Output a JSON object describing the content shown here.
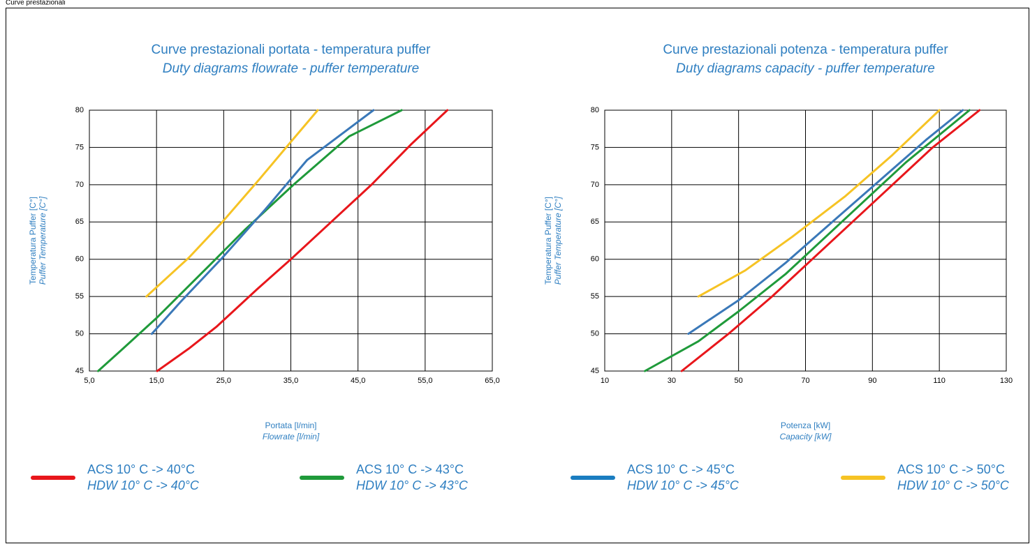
{
  "header": "Curve prestazionali",
  "chart_data": [
    {
      "type": "line",
      "title": "Curve prestazionali portata - temperatura puffer",
      "subtitle": "Duty diagrams flowrate - puffer temperature",
      "xlabel": "Portata [l/min]",
      "xlabel_en": "Flowrate [l/min]",
      "ylabel": "Temperatura  Puffer [C°]",
      "ylabel_en": "Puffer Temperature [C°]",
      "xlim": [
        5,
        65
      ],
      "xticks": [
        {
          "value": 5,
          "label": "5,0"
        },
        {
          "value": 15,
          "label": "15,0"
        },
        {
          "value": 25,
          "label": "25,0"
        },
        {
          "value": 35,
          "label": "35,0"
        },
        {
          "value": 45,
          "label": "45,0"
        },
        {
          "value": 55,
          "label": "55,0"
        },
        {
          "value": 65,
          "label": "65,0"
        }
      ],
      "ylim": [
        45,
        80
      ],
      "yticks": [
        45,
        50,
        55,
        60,
        65,
        70,
        75,
        80
      ],
      "grid": true,
      "series": [
        {
          "color": "#e8161b",
          "x": [
            15.1,
            19.8,
            24,
            30,
            35,
            41,
            47,
            53,
            58.3
          ],
          "values": [
            45,
            48,
            51,
            56,
            60,
            65,
            70,
            75.5,
            80
          ]
        },
        {
          "color": "#1f9a3a",
          "x": [
            6.3,
            10,
            15.1,
            22.9,
            28.1,
            35.4,
            43.7,
            51.5
          ],
          "values": [
            45,
            48,
            52.2,
            59.2,
            63.9,
            70,
            76.5,
            80
          ]
        },
        {
          "color": "#3a78b8",
          "x": [
            14.3,
            18.7,
            24.8,
            31.2,
            37.4,
            47.3
          ],
          "values": [
            50,
            54.4,
            60.2,
            66.7,
            73.3,
            80
          ]
        },
        {
          "color": "#f6c324",
          "x": [
            13.5,
            19.8,
            24.8,
            30.2,
            34.3,
            39
          ],
          "values": [
            55,
            60.2,
            65,
            70.6,
            75,
            80
          ]
        }
      ]
    },
    {
      "type": "line",
      "title": "Curve prestazionali potenza - temperatura puffer",
      "subtitle": "Duty diagrams capacity - puffer temperature",
      "xlabel": "Potenza [kW]",
      "xlabel_en": "Capacity [kW]",
      "ylabel": "Temperatura  Puffer [C°]",
      "ylabel_en": "Puffer Temperature [C°]",
      "xlim": [
        10,
        130
      ],
      "xticks": [
        10,
        30,
        50,
        70,
        90,
        110,
        130
      ],
      "ylim": [
        45,
        80
      ],
      "yticks": [
        45,
        50,
        55,
        60,
        65,
        70,
        75,
        80
      ],
      "grid": true,
      "series": [
        {
          "color": "#e8161b",
          "x": [
            33,
            47,
            60,
            72,
            84,
            96,
            108,
            122
          ],
          "values": [
            45,
            50,
            55,
            60,
            65,
            70,
            75,
            80
          ]
        },
        {
          "color": "#1f9a3a",
          "x": [
            22,
            38,
            50,
            64,
            76,
            88,
            100,
            119
          ],
          "values": [
            45,
            49,
            53,
            58,
            63,
            68,
            73,
            80
          ]
        },
        {
          "color": "#3a78b8",
          "x": [
            35,
            50,
            64,
            78,
            92,
            106,
            117
          ],
          "values": [
            50,
            54.5,
            59.5,
            65,
            70.5,
            76,
            80
          ]
        },
        {
          "color": "#f6c324",
          "x": [
            38,
            52,
            66,
            82,
            96,
            110
          ],
          "values": [
            55,
            58.5,
            63,
            68.5,
            74,
            80
          ]
        }
      ]
    }
  ],
  "legend": [
    {
      "label": "ACS 10° C -> 40°C",
      "label_en": "HDW 10° C -> 40°C",
      "color": "#e8161b"
    },
    {
      "label": "ACS 10° C -> 43°C",
      "label_en": "HDW 10° C -> 43°C",
      "color": "#1f9a3a"
    },
    {
      "label": "ACS 10° C -> 45°C",
      "label_en": "HDW 10° C -> 45°C",
      "color": "#1a7dc0"
    },
    {
      "label": "ACS 10° C -> 50°C",
      "label_en": "HDW 10° C -> 50°C",
      "color": "#f6c324"
    }
  ]
}
